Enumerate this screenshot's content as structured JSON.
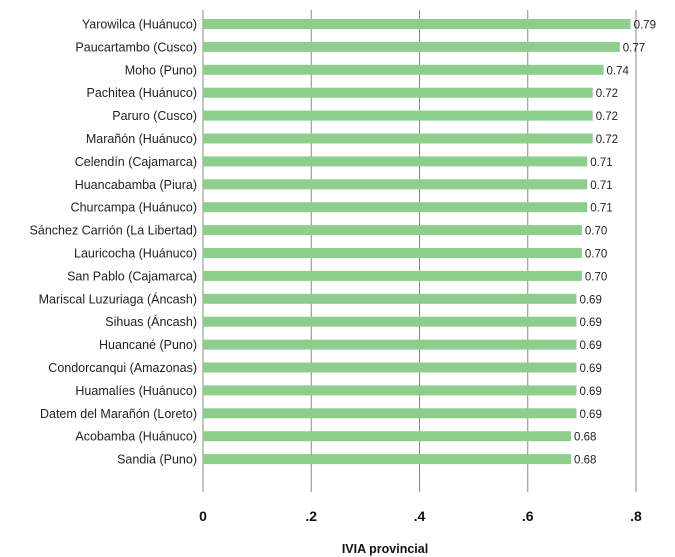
{
  "chart_data": {
    "type": "bar",
    "orientation": "horizontal",
    "categories": [
      "Yarowilca (Huánuco)",
      "Paucartambo (Cusco)",
      "Moho (Puno)",
      "Pachitea (Huánuco)",
      "Paruro (Cusco)",
      "Marañón (Huánuco)",
      "Celendín (Cajamarca)",
      "Huancabamba (Piura)",
      "Churcampa (Huánuco)",
      "Sánchez Carrión (La Libertad)",
      "Lauricocha (Huánuco)",
      "San Pablo (Cajamarca)",
      "Mariscal Luzuriaga (Áncash)",
      "Sihuas (Áncash)",
      "Huancané (Puno)",
      "Condorcanqui (Amazonas)",
      "Huamalíes (Huánuco)",
      "Datem del Marañón (Loreto)",
      "Acobamba (Huánuco)",
      "Sandia (Puno)"
    ],
    "values": [
      0.79,
      0.77,
      0.74,
      0.72,
      0.72,
      0.72,
      0.71,
      0.71,
      0.71,
      0.7,
      0.7,
      0.7,
      0.69,
      0.69,
      0.69,
      0.69,
      0.69,
      0.69,
      0.68,
      0.68
    ],
    "value_labels": [
      "0.79",
      "0.77",
      "0.74",
      "0.72",
      "0.72",
      "0.72",
      "0.71",
      "0.71",
      "0.71",
      "0.70",
      "0.70",
      "0.70",
      "0.69",
      "0.69",
      "0.69",
      "0.69",
      "0.69",
      "0.69",
      "0.68",
      "0.68"
    ],
    "xlim": [
      0,
      0.8
    ],
    "xticks": [
      0,
      0.2,
      0.4,
      0.6,
      0.8
    ],
    "xtick_labels": [
      "0",
      ".2",
      ".4",
      ".6",
      ".8"
    ],
    "xlabel": "IVIA provincial",
    "ylabel": "",
    "title": "",
    "grid": "vertical",
    "bar_color": "#8dce8d",
    "grid_color": "#888888"
  }
}
